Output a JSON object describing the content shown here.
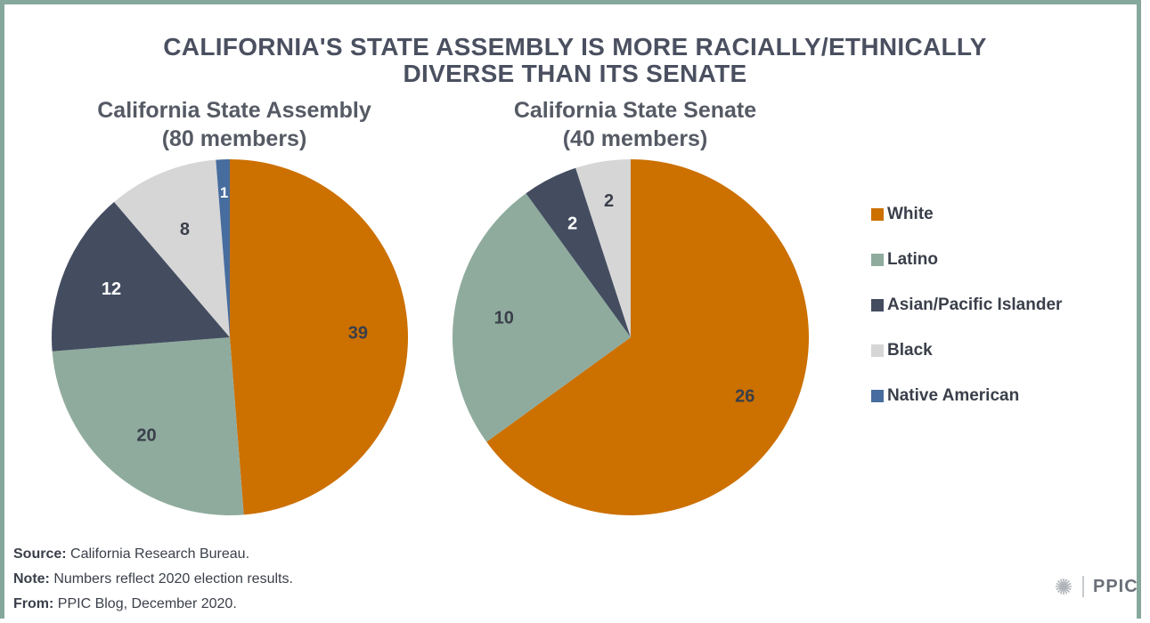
{
  "title_line1": "CALIFORNIA'S STATE ASSEMBLY IS MORE RACIALLY/ETHNICALLY",
  "title_line2": "DIVERSE THAN ITS SENATE",
  "colors": {
    "White": "#cc7000",
    "Latino": "#8fab9e",
    "Asian/Pacific Islander": "#444d60",
    "Black": "#d6d6d6",
    "Native American": "#476d9e"
  },
  "legend": [
    "White",
    "Latino",
    "Asian/Pacific Islander",
    "Black",
    "Native American"
  ],
  "chart_data": [
    {
      "type": "pie",
      "title_line1": "California State Assembly",
      "title_line2": "(80 members)",
      "labels": [
        "White",
        "Latino",
        "Asian/Pacific Islander",
        "Black",
        "Native American"
      ],
      "values": [
        39,
        20,
        12,
        8,
        1
      ]
    },
    {
      "type": "pie",
      "title_line1": "California State Senate",
      "title_line2": "(40 members)",
      "labels": [
        "White",
        "Latino",
        "Asian/Pacific Islander",
        "Black"
      ],
      "values": [
        26,
        10,
        2,
        2
      ]
    }
  ],
  "footer": {
    "source_label": "Source:",
    "source_text": " California Research Bureau.",
    "note_label": "Note:",
    "note_text": " Numbers reflect 2020 election results.",
    "from_label": "From:",
    "from_text": " PPIC Blog, December 2020."
  },
  "logo_text": "PPIC"
}
